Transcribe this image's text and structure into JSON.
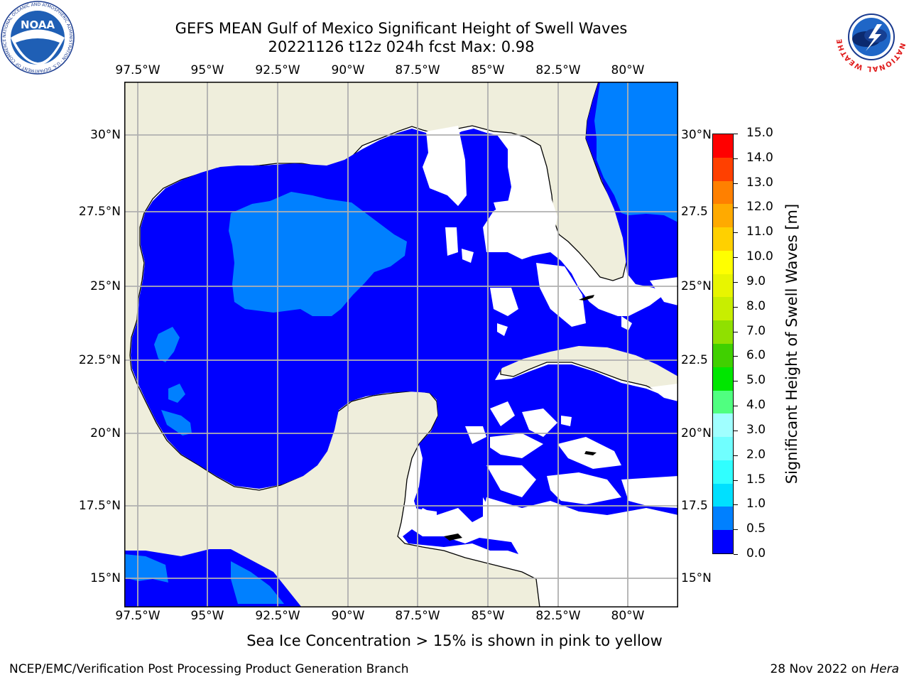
{
  "header": {
    "title_line1": "GEFS MEAN Gulf of Mexico Significant Height of Swell Waves",
    "title_line2": "20221126 t12z 024h fcst   Max: 0.98"
  },
  "logos": {
    "noaa_text": "NOAA",
    "noaa_ring_text": "NATIONAL OCEANIC AND ATMOSPHERIC ADMINISTRATION · U.S. DEPARTMENT OF COMMERCE",
    "nws_ring_text": "NATIONAL WEATHER SERVICE"
  },
  "map": {
    "lon_labels": [
      "97.5°W",
      "95°W",
      "92.5°W",
      "90°W",
      "87.5°W",
      "85°W",
      "82.5°W",
      "80°W"
    ],
    "lat_labels_left": [
      "30°N",
      "27.5°N",
      "25°N",
      "22.5°N",
      "20°N",
      "17.5°N",
      "15°N"
    ],
    "lat_labels_right": [
      "30°N",
      "27.5",
      "25°N",
      "22.5",
      "20°N",
      "17.5",
      "15°N"
    ],
    "lon_range": [
      -98,
      -78.3
    ],
    "lat_range": [
      14,
      31.8
    ],
    "land_color": "#efeedc",
    "swell_0_05_color": "#0000ff",
    "swell_05_1_color": "#0080ff",
    "no_data_color": "#ffffff",
    "grid": true
  },
  "colorbar": {
    "label": "Significant Height of Swell Waves [m]",
    "tick_labels": [
      "0.0",
      "0.5",
      "1.0",
      "1.5",
      "2.0",
      "3.0",
      "4.0",
      "5.0",
      "6.0",
      "7.0",
      "8.0",
      "9.0",
      "10.0",
      "11.0",
      "12.0",
      "13.0",
      "14.0",
      "15.0"
    ],
    "colors": [
      "#0000ff",
      "#0080ff",
      "#00e0ff",
      "#30ffff",
      "#70ffff",
      "#a0ffff",
      "#50ff80",
      "#00e600",
      "#40d000",
      "#90e000",
      "#c8ee00",
      "#e8f500",
      "#ffff00",
      "#ffd000",
      "#ffaa00",
      "#ff8000",
      "#ff4000",
      "#ff0000"
    ]
  },
  "notes": {
    "ice_note": "Sea Ice Concentration > 15% is shown in pink to yellow",
    "footer_left": "NCEP/EMC/Verification Post Processing Product Generation Branch",
    "footer_date": "28 Nov 2022 on ",
    "footer_machine": "Hera"
  }
}
